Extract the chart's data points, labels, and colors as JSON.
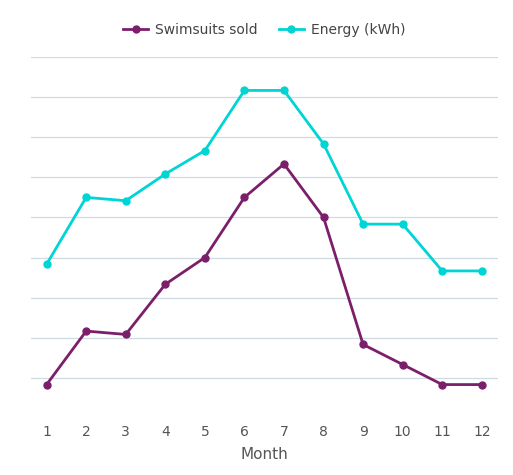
{
  "months": [
    1,
    2,
    3,
    4,
    5,
    6,
    7,
    8,
    9,
    10,
    11,
    12
  ],
  "swimsuits": [
    2,
    18,
    17,
    32,
    40,
    58,
    68,
    52,
    14,
    8,
    2,
    2
  ],
  "energy": [
    38,
    58,
    57,
    65,
    72,
    90,
    90,
    74,
    50,
    50,
    36,
    36
  ],
  "swimsuits_color": "#7b1f6a",
  "energy_color": "#00d4d4",
  "legend_swimsuits": "Swimsuits sold",
  "legend_energy": "Energy (kWh)",
  "xlabel": "Month",
  "bg_color": "#ffffff",
  "grid_color": "#d0dae2",
  "marker": "o",
  "linewidth": 2.0,
  "markersize": 5,
  "ylim_min": -8,
  "ylim_max": 100,
  "n_gridlines": 9
}
